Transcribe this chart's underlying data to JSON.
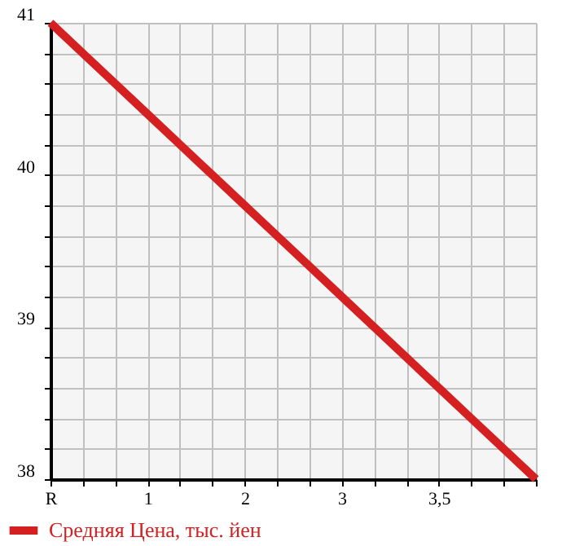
{
  "chart_data": {
    "type": "line",
    "categories": [
      "R",
      null,
      null,
      "1",
      null,
      null,
      "2",
      null,
      null,
      "3",
      null,
      null,
      "3,5",
      null,
      null,
      null
    ],
    "series": [
      {
        "name": "Средняя Цена, тыс. йен",
        "color": "#d42020",
        "values": [
          41,
          40.8,
          40.6,
          40.4,
          40.2,
          40,
          39.8,
          39.6,
          39.4,
          39.2,
          39,
          38.8,
          38.6,
          38.4,
          38.2,
          38
        ]
      }
    ],
    "ylim": [
      38,
      41
    ],
    "yticks": [
      38,
      {
        "value": 38.2,
        "label": null
      },
      {
        "value": 38.4,
        "label": null
      },
      {
        "value": 38.6,
        "label": null
      },
      {
        "value": 38.8,
        "label": null
      },
      39,
      {
        "value": 39.2,
        "label": null
      },
      {
        "value": 39.4,
        "label": null
      },
      {
        "value": 39.6,
        "label": null
      },
      {
        "value": 39.8,
        "label": null
      },
      40,
      {
        "value": 40.2,
        "label": null
      },
      {
        "value": 40.4,
        "label": null
      },
      {
        "value": 40.6,
        "label": null
      },
      {
        "value": 40.8,
        "label": null
      },
      41
    ],
    "grid": true,
    "legend": "bottom left",
    "marker": "none",
    "line_style": "solid"
  }
}
